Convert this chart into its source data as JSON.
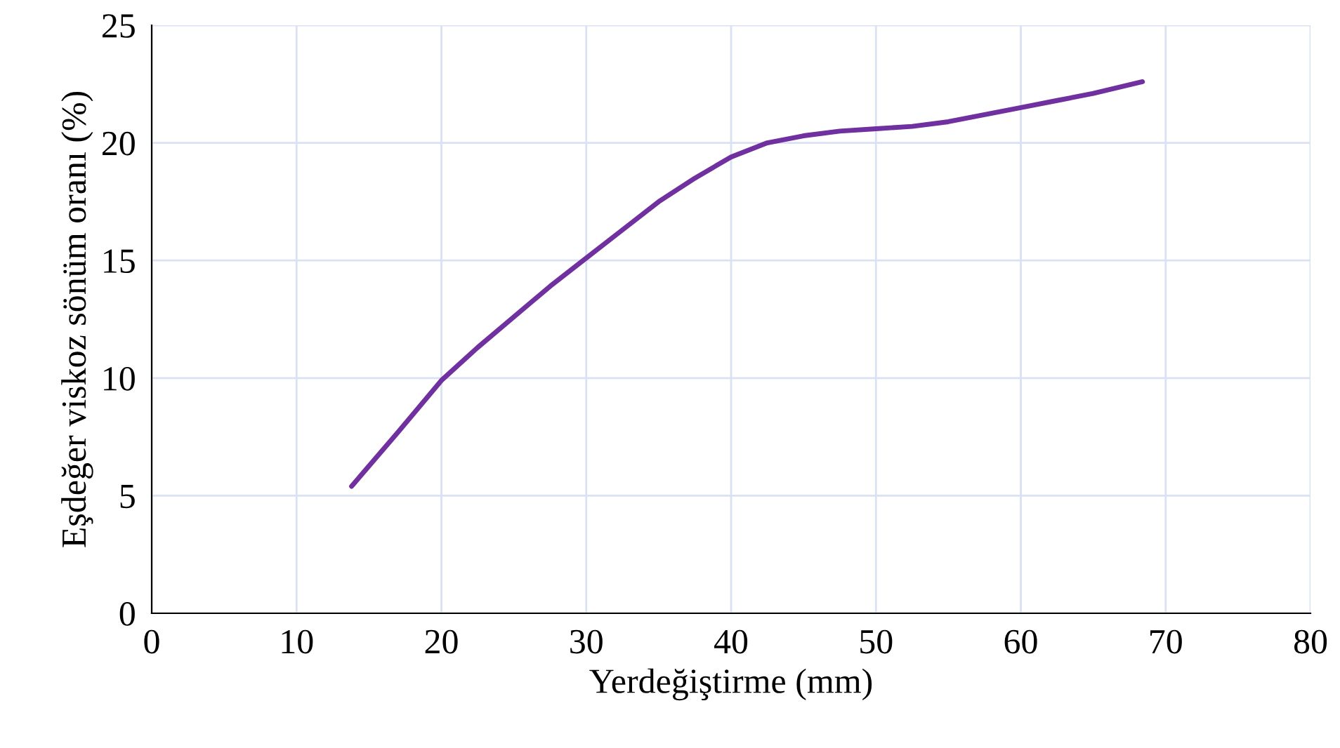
{
  "chart_data": {
    "type": "line",
    "xlabel": "Yerdeğiştirme (mm)",
    "ylabel": "Eşdeğer viskoz sönüm oranı (%)",
    "series": [
      {
        "color": "#7030a0",
        "x": [
          13.8,
          17,
          20,
          22.5,
          25,
          27.5,
          30,
          32.5,
          35,
          37.5,
          40,
          42.5,
          45,
          47.5,
          50,
          52.5,
          55,
          57.5,
          60,
          62.5,
          65,
          68.4
        ],
        "values": [
          5.4,
          7.7,
          9.9,
          11.3,
          12.6,
          13.9,
          15.1,
          16.3,
          17.5,
          18.5,
          19.4,
          20.0,
          20.3,
          20.5,
          20.6,
          20.7,
          20.9,
          21.2,
          21.5,
          21.8,
          22.1,
          22.6
        ]
      }
    ],
    "xlim": [
      0,
      80
    ],
    "ylim": [
      0,
      25
    ],
    "xticks": [
      0,
      10,
      20,
      30,
      40,
      50,
      60,
      70,
      80
    ],
    "yticks": [
      0,
      5,
      10,
      15,
      20,
      25
    ],
    "grid": true,
    "legend": false,
    "marker": "none",
    "line_style": "solid"
  }
}
